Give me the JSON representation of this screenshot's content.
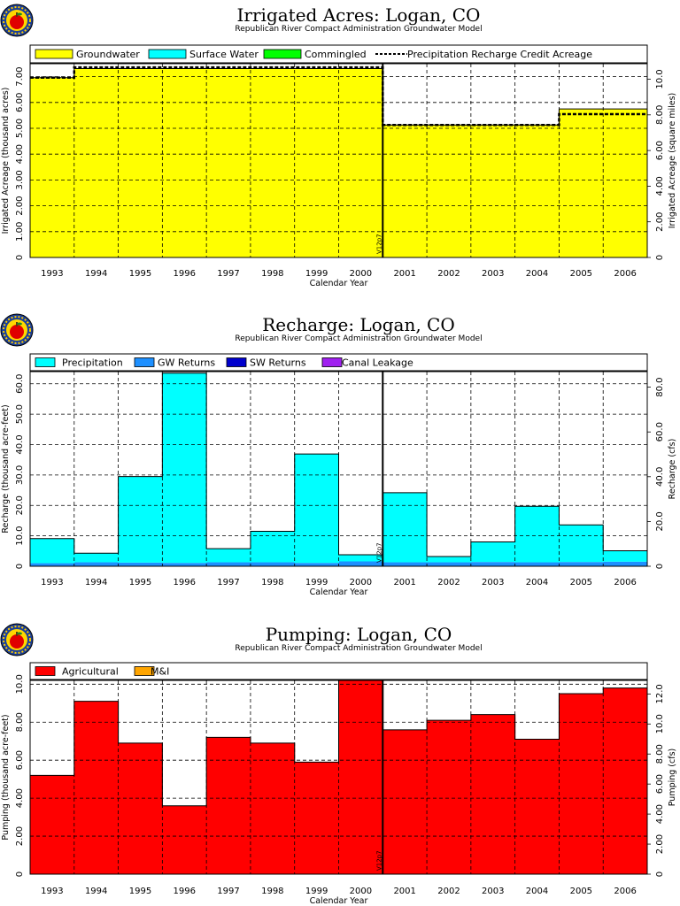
{
  "subtitle": "Republican River Compact Administration Groundwater Model",
  "marker_label": "V12p7",
  "chart_data": [
    {
      "type": "area",
      "title": "Irrigated Acres: Logan, CO",
      "xlabel": "Calendar Year",
      "ylabel": "Irrigated Acreage (thousand acres)",
      "ylabel_right": "Irrigated Acreage (square miles)",
      "categories": [
        "1993",
        "1994",
        "1995",
        "1996",
        "1997",
        "1998",
        "1999",
        "2000",
        "2001",
        "2002",
        "2003",
        "2004",
        "2005",
        "2006"
      ],
      "ylim": [
        0,
        7.5
      ],
      "yticks": [
        "0",
        "1.00",
        "2.00",
        "3.00",
        "4.00",
        "5.00",
        "6.00",
        "7.00"
      ],
      "yticks_right": [
        "0",
        "2.00",
        "4.00",
        "6.00",
        "8.00",
        "10.0"
      ],
      "grid": true,
      "legend": [
        "Groundwater",
        "Surface Water",
        "Commingled",
        "Precipitation Recharge Credit Acreage"
      ],
      "series": [
        {
          "name": "Groundwater",
          "color": "#ffff00",
          "values": [
            6.96,
            7.31,
            7.31,
            7.31,
            7.31,
            7.31,
            7.31,
            7.31,
            5.13,
            5.13,
            5.13,
            5.13,
            5.75,
            5.75
          ]
        },
        {
          "name": "Surface Water",
          "color": "#00ffff",
          "values": [
            0,
            0,
            0,
            0,
            0,
            0,
            0,
            0,
            0,
            0,
            0,
            0,
            0,
            0
          ]
        },
        {
          "name": "Commingled",
          "color": "#00ff00",
          "values": [
            0,
            0,
            0,
            0,
            0,
            0,
            0,
            0,
            0,
            0,
            0,
            0,
            0,
            0
          ]
        },
        {
          "name": "Precipitation Recharge Credit Acreage",
          "color": "#000000",
          "style": "dashed",
          "values": [
            6.96,
            7.36,
            7.36,
            7.36,
            7.36,
            7.36,
            7.36,
            7.36,
            5.13,
            5.13,
            5.13,
            5.13,
            5.55,
            5.55
          ]
        }
      ]
    },
    {
      "type": "area",
      "title": "Recharge: Logan, CO",
      "xlabel": "Calendar Year",
      "ylabel": "Recharge (thousand acre-feet)",
      "ylabel_right": "Recharge (cfs)",
      "categories": [
        "1993",
        "1994",
        "1995",
        "1996",
        "1997",
        "1998",
        "1999",
        "2000",
        "2001",
        "2002",
        "2003",
        "2004",
        "2005",
        "2006"
      ],
      "ylim": [
        0,
        64
      ],
      "yticks": [
        "0",
        "10.0",
        "20.0",
        "30.0",
        "40.0",
        "50.0",
        "60.0"
      ],
      "yticks_right": [
        "0",
        "20.0",
        "40.0",
        "60.0",
        "80.0"
      ],
      "grid": true,
      "legend": [
        "Precipitation",
        "GW Returns",
        "SW Returns",
        "Canal Leakage"
      ],
      "series": [
        {
          "name": "GW Returns",
          "color": "#1e90ff",
          "values": [
            1.0,
            1.3,
            1.2,
            1.1,
            1.3,
            1.3,
            1.1,
            1.6,
            1.3,
            1.3,
            1.4,
            1.3,
            1.4,
            1.5
          ]
        },
        {
          "name": "SW Returns",
          "color": "#0000cd",
          "values": [
            0,
            0,
            0,
            0,
            0,
            0,
            0,
            0,
            0,
            0,
            0,
            0,
            0,
            0
          ]
        },
        {
          "name": "Canal Leakage",
          "color": "#a020f0",
          "values": [
            0,
            0,
            0,
            0,
            0,
            0,
            0,
            0,
            0,
            0,
            0,
            0,
            0,
            0
          ]
        },
        {
          "name": "Precipitation",
          "color": "#00ffff",
          "values": [
            8.1,
            3.0,
            28.3,
            62.4,
            4.5,
            10.2,
            35.8,
            2.2,
            22.9,
            1.9,
            6.6,
            18.4,
            12.2,
            3.6
          ]
        }
      ]
    },
    {
      "type": "area",
      "title": "Pumping: Logan, CO",
      "xlabel": "Calendar Year",
      "ylabel": "Pumping (thousand acre-feet)",
      "ylabel_right": "Pumping (cfs)",
      "categories": [
        "1993",
        "1994",
        "1995",
        "1996",
        "1997",
        "1998",
        "1999",
        "2000",
        "2001",
        "2002",
        "2003",
        "2004",
        "2005",
        "2006"
      ],
      "ylim": [
        0,
        10.2
      ],
      "yticks": [
        "0",
        "2.00",
        "4.00",
        "6.00",
        "8.00",
        "10.0"
      ],
      "yticks_right": [
        "0",
        "2.00",
        "4.00",
        "6.00",
        "8.00",
        "10.0",
        "12.0"
      ],
      "grid": true,
      "legend": [
        "Agricultural",
        "M&I"
      ],
      "series": [
        {
          "name": "Agricultural",
          "color": "#ff0000",
          "values": [
            5.2,
            9.1,
            6.9,
            3.6,
            7.2,
            6.9,
            5.9,
            10.2,
            7.6,
            8.1,
            8.4,
            7.1,
            9.5,
            9.8
          ]
        },
        {
          "name": "M&I",
          "color": "#ffa500",
          "values": [
            0,
            0,
            0,
            0,
            0,
            0,
            0,
            0,
            0,
            0,
            0,
            0,
            0,
            0
          ]
        }
      ]
    }
  ]
}
